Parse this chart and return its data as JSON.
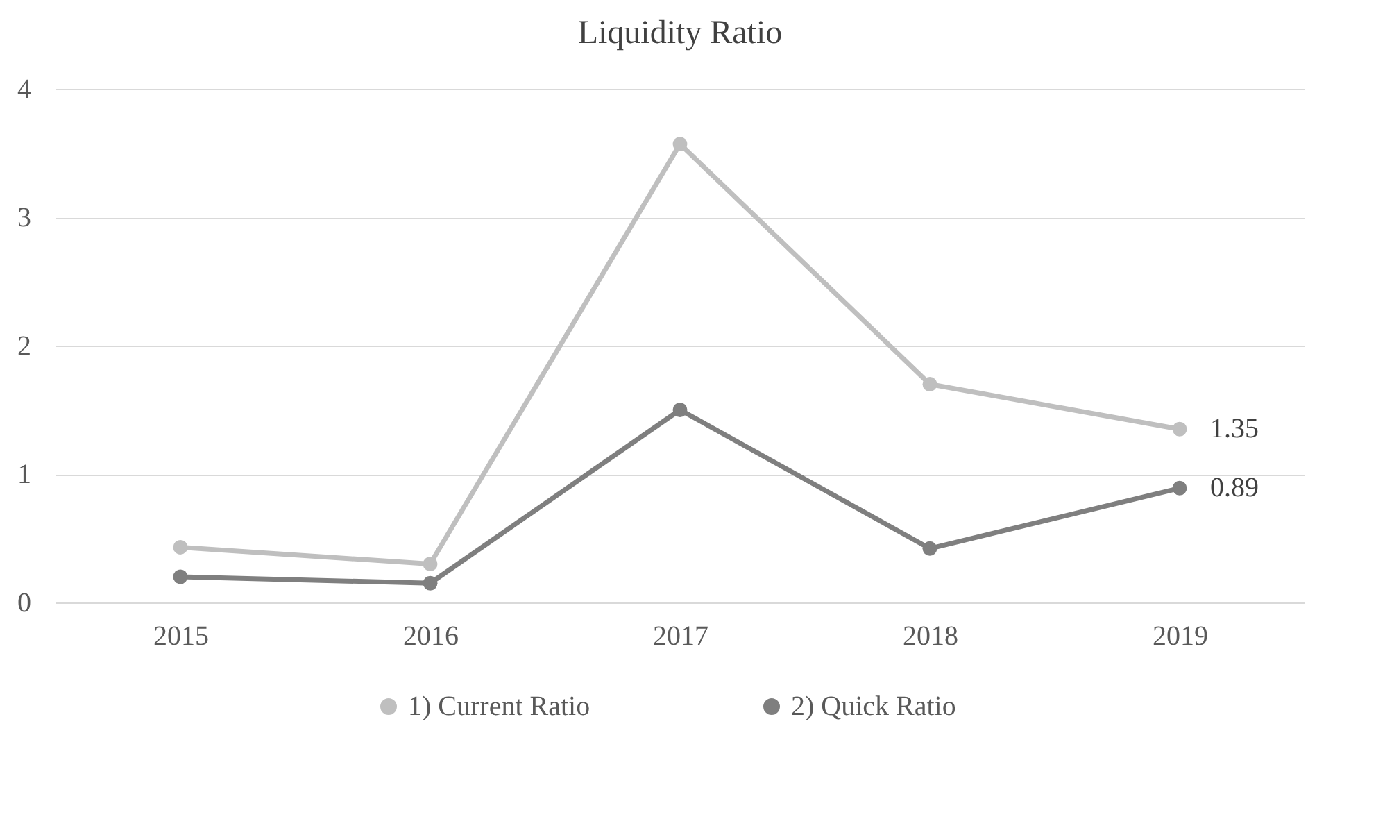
{
  "chart_data": {
    "type": "line",
    "title": "Liquidity  Ratio",
    "categories": [
      "2015",
      "2016",
      "2017",
      "2018",
      "2019"
    ],
    "series": [
      {
        "name": "1) Current Ratio",
        "color": "#bfbfbf",
        "values": [
          0.43,
          0.3,
          3.57,
          1.7,
          1.35
        ],
        "value_labels": [
          null,
          null,
          null,
          null,
          "1.35"
        ]
      },
      {
        "name": "2) Quick Ratio",
        "color": "#7f7f7f",
        "values": [
          0.2,
          0.15,
          1.5,
          0.42,
          0.89
        ],
        "value_labels": [
          null,
          null,
          null,
          null,
          "0.89"
        ]
      }
    ],
    "ylim": [
      0,
      4
    ],
    "yticks": [
      0,
      1,
      2,
      3,
      4
    ],
    "grid": "y",
    "legend": "bottom",
    "marker": "circle",
    "line_style": "solid"
  }
}
